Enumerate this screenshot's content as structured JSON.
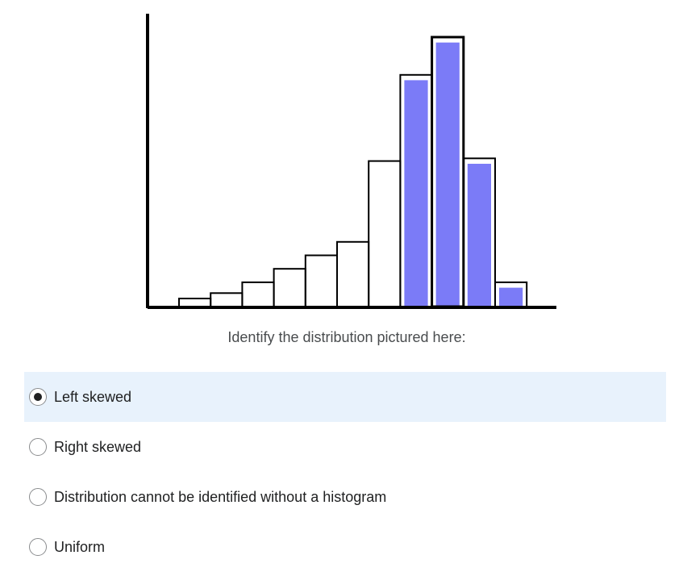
{
  "question": {
    "prompt": "Identify the distribution pictured here:"
  },
  "options": [
    {
      "label": "Left skewed",
      "selected": true
    },
    {
      "label": "Right skewed",
      "selected": false
    },
    {
      "label": "Distribution cannot be identified without a histogram",
      "selected": false
    },
    {
      "label": "Uniform",
      "selected": false
    }
  ],
  "colors": {
    "selected_row_bg": "#e8f2fc",
    "overlay_bar": "#7b7bf7",
    "outline": "#000000"
  },
  "chart_data": {
    "type": "bar",
    "title": "",
    "xlabel": "",
    "ylabel": "",
    "grid": false,
    "ylim": [
      0,
      100
    ],
    "series": [
      {
        "values": [
          3,
          5,
          9,
          14,
          19,
          24,
          54,
          86,
          100,
          55,
          9
        ],
        "fill": "none"
      },
      {
        "values": [
          0,
          0,
          0,
          0,
          0,
          0,
          0,
          84,
          98,
          53,
          7
        ],
        "fill": "#7b7bf7"
      }
    ]
  }
}
